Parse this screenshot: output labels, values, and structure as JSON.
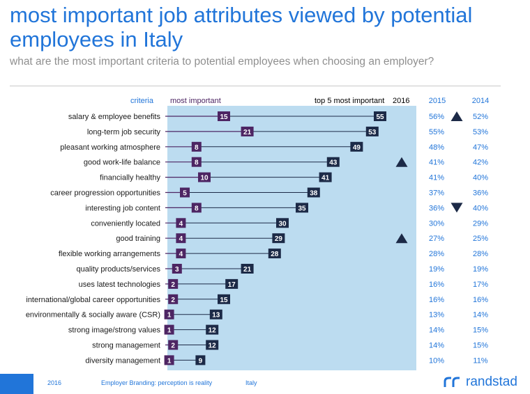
{
  "title": "most important job attributes viewed by potential employees in Italy",
  "subtitle": "what are the most important criteria to potential employees when choosing an employer?",
  "headers": {
    "criteria": "criteria",
    "most_important": "most important",
    "top5": "top 5 most important",
    "y2016": "2016",
    "y2015": "2015",
    "y2014": "2014"
  },
  "colors": {
    "most_important_box": "#4d2563",
    "top5_box": "#1c2a47",
    "panel": "#bcdcf0",
    "accent": "#2175d9",
    "trend_marker": "#1c2a47"
  },
  "chart_data": {
    "type": "bar",
    "title": "most important job attributes viewed by potential employees in Italy",
    "x_scale_max": 55,
    "categories": [
      "salary & employee benefits",
      "long-term job security",
      "pleasant working atmosphere",
      "good work-life balance",
      "financially healthy",
      "career progression opportunities",
      "interesting job content",
      "conveniently located",
      "good training",
      "flexible working arrangements",
      "quality products/services",
      "uses latest technologies",
      "international/global career opportunities",
      "environmentally & socially aware (CSR)",
      "strong image/strong values",
      "strong management",
      "diversity management"
    ],
    "series": [
      {
        "name": "most important",
        "values": [
          15,
          21,
          8,
          8,
          10,
          5,
          8,
          4,
          4,
          4,
          3,
          2,
          2,
          1,
          1,
          2,
          1
        ]
      },
      {
        "name": "top 5 most important 2016",
        "values": [
          55,
          53,
          49,
          43,
          41,
          38,
          35,
          30,
          29,
          28,
          21,
          17,
          15,
          13,
          12,
          12,
          9
        ]
      },
      {
        "name": "2015",
        "values": [
          "56%",
          "55%",
          "48%",
          "41%",
          "41%",
          "37%",
          "36%",
          "30%",
          "27%",
          "28%",
          "19%",
          "16%",
          "16%",
          "13%",
          "14%",
          "14%",
          "10%"
        ]
      },
      {
        "name": "2014",
        "values": [
          "52%",
          "53%",
          "47%",
          "42%",
          "40%",
          "36%",
          "40%",
          "29%",
          "25%",
          "28%",
          "19%",
          "17%",
          "16%",
          "14%",
          "15%",
          "15%",
          "11%"
        ]
      }
    ],
    "trend_markers": [
      {
        "row": 0,
        "column": "2015",
        "direction": "up"
      },
      {
        "row": 3,
        "column": "2016",
        "direction": "up"
      },
      {
        "row": 6,
        "column": "2015",
        "direction": "down"
      },
      {
        "row": 8,
        "column": "2016",
        "direction": "up"
      }
    ]
  },
  "footer": {
    "year": "2016",
    "tagline": "Employer Branding: perception is reality",
    "country": "Italy",
    "brand": "randstad",
    "brand_icon": "randstad-logo-icon"
  }
}
